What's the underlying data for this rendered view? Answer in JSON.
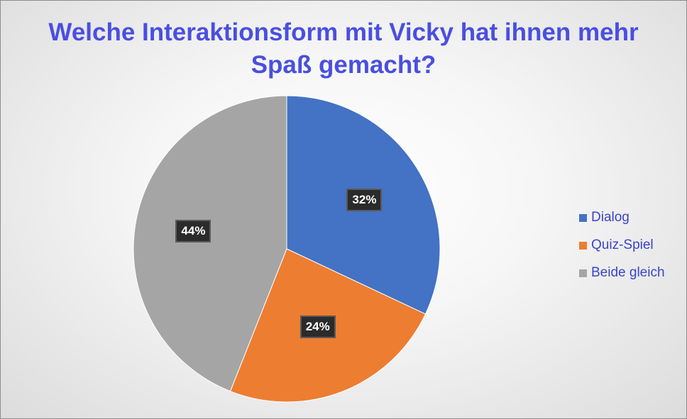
{
  "chart_data": {
    "type": "pie",
    "title": "Welche Interaktionsform mit Vicky hat ihnen mehr Spaß gemacht?",
    "categories": [
      "Dialog",
      "Quiz-Spiel",
      "Beide gleich"
    ],
    "values": [
      32,
      24,
      44
    ],
    "data_labels": [
      "32%",
      "24%",
      "44%"
    ],
    "colors": [
      "#4472c4",
      "#ed7d31",
      "#a5a5a5"
    ],
    "legend_position": "right",
    "start_angle": "12 o'clock, clockwise"
  }
}
